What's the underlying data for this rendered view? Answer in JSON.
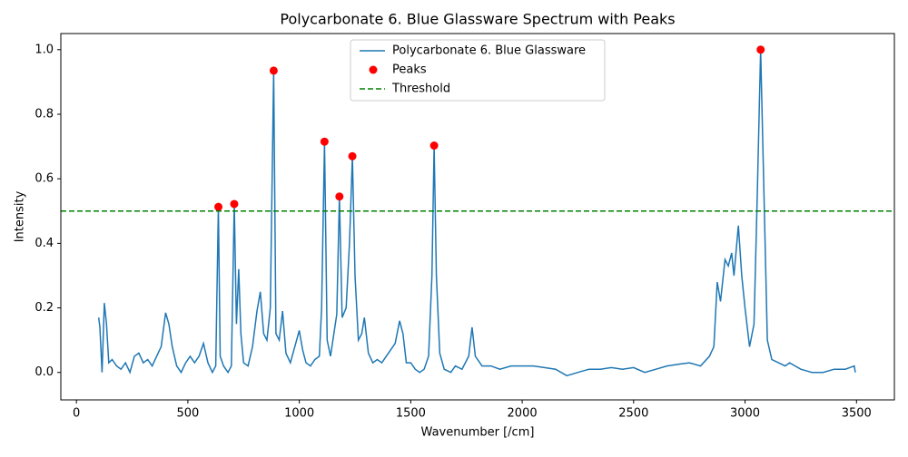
{
  "chart_data": {
    "type": "line",
    "title": "Polycarbonate 6. Blue Glassware Spectrum with Peaks",
    "x_label": "Wavenumber [/cm]",
    "y_label": "Intensity",
    "xlim": [
      -70,
      3670
    ],
    "ylim": [
      -0.085,
      1.05
    ],
    "xticks": [
      0,
      500,
      1000,
      1500,
      2000,
      2500,
      3000,
      3500
    ],
    "yticks": [
      {
        "value": 0,
        "label": "0.0"
      },
      0.2,
      0.4,
      0.6,
      0.8,
      {
        "value": 1,
        "label": "1.0"
      }
    ],
    "legend": "upper center",
    "series": [
      {
        "name": "Polycarbonate 6. Blue Glassware",
        "color": "#1f77b4",
        "style": "line",
        "x": [
          100,
          105,
          115,
          125,
          135,
          145,
          160,
          180,
          200,
          220,
          240,
          260,
          280,
          300,
          320,
          340,
          360,
          380,
          400,
          415,
          430,
          450,
          470,
          490,
          510,
          530,
          550,
          570,
          590,
          610,
          625,
          637,
          645,
          660,
          680,
          695,
          708,
          718,
          728,
          738,
          750,
          770,
          790,
          810,
          825,
          840,
          855,
          870,
          885,
          895,
          910,
          925,
          940,
          960,
          980,
          1000,
          1015,
          1030,
          1050,
          1070,
          1090,
          1100,
          1113,
          1125,
          1140,
          1155,
          1168,
          1180,
          1192,
          1210,
          1225,
          1238,
          1250,
          1265,
          1280,
          1292,
          1310,
          1330,
          1350,
          1370,
          1390,
          1410,
          1430,
          1450,
          1465,
          1480,
          1500,
          1520,
          1540,
          1560,
          1580,
          1595,
          1605,
          1615,
          1630,
          1650,
          1680,
          1700,
          1730,
          1760,
          1775,
          1790,
          1820,
          1860,
          1900,
          1950,
          2000,
          2050,
          2100,
          2150,
          2200,
          2250,
          2300,
          2350,
          2400,
          2450,
          2500,
          2550,
          2600,
          2650,
          2700,
          2750,
          2800,
          2840,
          2860,
          2875,
          2890,
          2910,
          2925,
          2940,
          2950,
          2970,
          2985,
          3000,
          3020,
          3040,
          3055,
          3070,
          3085,
          3100,
          3120,
          3150,
          3180,
          3200,
          3250,
          3300,
          3350,
          3400,
          3450,
          3490,
          3495
        ],
        "values": [
          0.17,
          0.14,
          0.0,
          0.215,
          0.15,
          0.03,
          0.04,
          0.02,
          0.01,
          0.03,
          0.0,
          0.05,
          0.06,
          0.03,
          0.04,
          0.02,
          0.05,
          0.08,
          0.185,
          0.15,
          0.08,
          0.02,
          0.0,
          0.03,
          0.05,
          0.03,
          0.05,
          0.09,
          0.03,
          0.0,
          0.02,
          0.513,
          0.05,
          0.02,
          0.0,
          0.02,
          0.522,
          0.15,
          0.32,
          0.12,
          0.03,
          0.02,
          0.08,
          0.19,
          0.25,
          0.12,
          0.1,
          0.2,
          0.935,
          0.12,
          0.1,
          0.19,
          0.06,
          0.03,
          0.08,
          0.13,
          0.07,
          0.03,
          0.02,
          0.04,
          0.05,
          0.2,
          0.715,
          0.1,
          0.05,
          0.12,
          0.18,
          0.545,
          0.17,
          0.2,
          0.4,
          0.67,
          0.3,
          0.1,
          0.12,
          0.17,
          0.06,
          0.03,
          0.04,
          0.03,
          0.05,
          0.07,
          0.09,
          0.16,
          0.12,
          0.03,
          0.03,
          0.01,
          0.0,
          0.01,
          0.05,
          0.3,
          0.703,
          0.3,
          0.06,
          0.01,
          0.0,
          0.02,
          0.01,
          0.05,
          0.14,
          0.05,
          0.02,
          0.02,
          0.01,
          0.02,
          0.02,
          0.02,
          0.015,
          0.01,
          -0.01,
          0.0,
          0.01,
          0.01,
          0.015,
          0.01,
          0.015,
          0.0,
          0.01,
          0.02,
          0.025,
          0.03,
          0.02,
          0.05,
          0.08,
          0.28,
          0.22,
          0.35,
          0.33,
          0.37,
          0.3,
          0.455,
          0.3,
          0.2,
          0.08,
          0.15,
          0.55,
          1.0,
          0.55,
          0.1,
          0.04,
          0.03,
          0.02,
          0.03,
          0.01,
          0.0,
          0.0,
          0.01,
          0.01,
          0.02,
          0.0
        ]
      },
      {
        "name": "Peaks",
        "color": "#ff0000",
        "style": "scatter",
        "x": [
          637,
          708,
          885,
          1113,
          1180,
          1238,
          1605,
          3070
        ],
        "values": [
          0.513,
          0.522,
          0.935,
          0.715,
          0.545,
          0.67,
          0.703,
          1.0
        ]
      }
    ],
    "threshold": {
      "name": "Threshold",
      "color": "#008000",
      "value": 0.5
    }
  }
}
